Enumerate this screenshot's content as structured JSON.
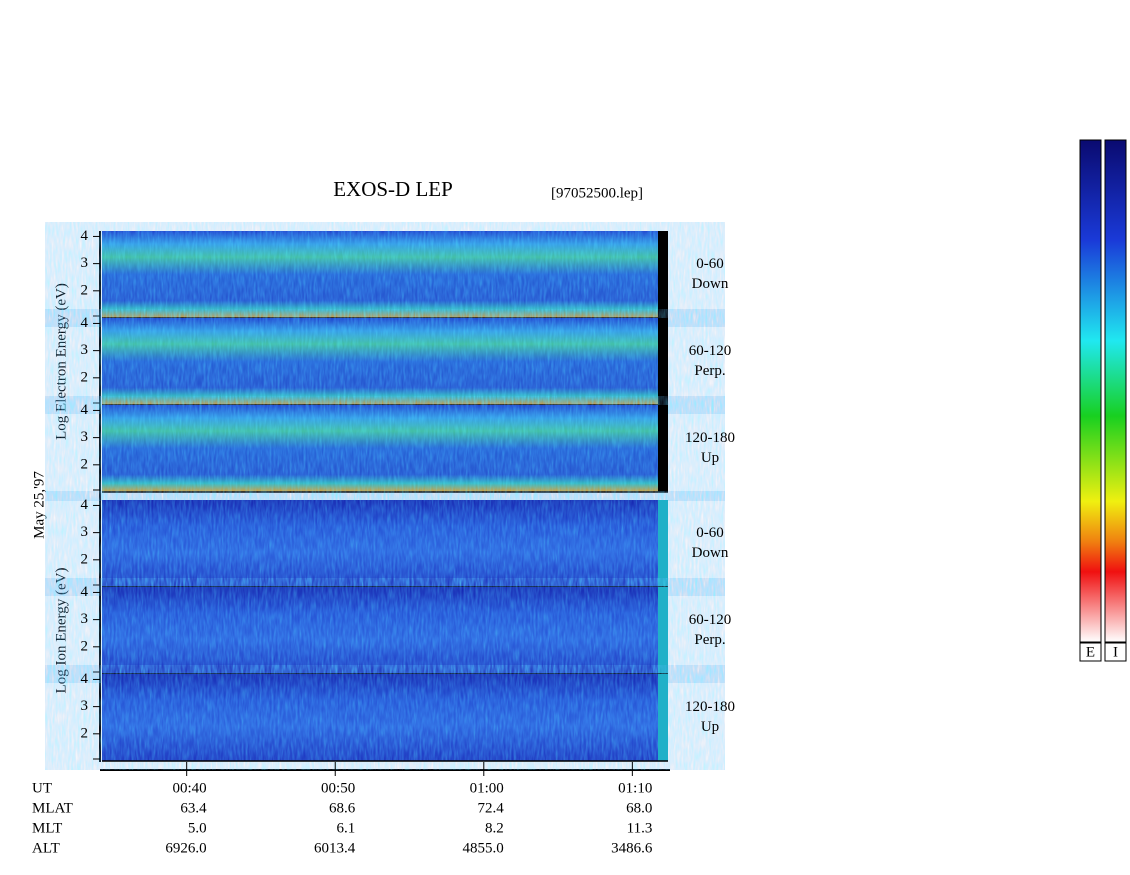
{
  "chart_data": {
    "type": "spectrogram",
    "title": "EXOS-D LEP",
    "subtitle": "[97052500.lep]",
    "date_label": "May 25,'97",
    "x_label": "UT",
    "xlim": [
      34.3,
      72.4
    ],
    "xticks": [
      {
        "value": 40,
        "label": "00:40"
      },
      {
        "value": 50,
        "label": "00:50"
      },
      {
        "value": 60,
        "label": "01:00"
      },
      {
        "value": 70,
        "label": "01:10"
      }
    ],
    "panel_groups": [
      {
        "ylabel": "Log  Electron  Energy (eV)",
        "species": "electron",
        "panels": [
          {
            "pitch_angle": "0-60",
            "direction": "Down",
            "ylim": [
              1,
              4.2
            ],
            "yticks": [
              2,
              3,
              4
            ]
          },
          {
            "pitch_angle": "60-120",
            "direction": "Perp.",
            "ylim": [
              1,
              4.2
            ],
            "yticks": [
              2,
              3,
              4
            ]
          },
          {
            "pitch_angle": "120-180",
            "direction": "Up",
            "ylim": [
              1,
              4.2
            ],
            "yticks": [
              2,
              3,
              4
            ]
          }
        ]
      },
      {
        "ylabel": "Log  Ion  Energy (eV)",
        "species": "ion",
        "panels": [
          {
            "pitch_angle": "0-60",
            "direction": "Down",
            "ylim": [
              1,
              4.2
            ],
            "yticks": [
              2,
              3,
              4
            ]
          },
          {
            "pitch_angle": "60-120",
            "direction": "Perp.",
            "ylim": [
              1,
              4.2
            ],
            "yticks": [
              2,
              3,
              4
            ]
          },
          {
            "pitch_angle": "120-180",
            "direction": "Up",
            "ylim": [
              1,
              4.2
            ],
            "yticks": [
              2,
              3,
              4
            ]
          }
        ]
      }
    ],
    "ephemeris": [
      {
        "label": "MLAT",
        "values": [
          "63.4",
          "68.6",
          "72.4",
          "68.0"
        ]
      },
      {
        "label": "MLT",
        "values": [
          "5.0",
          "6.1",
          "8.2",
          "11.3"
        ]
      },
      {
        "label": "ALT",
        "values": [
          "6926.0",
          "6013.4",
          "4855.0",
          "3486.6"
        ]
      }
    ],
    "colorbar_labels": [
      "E",
      "I"
    ]
  }
}
